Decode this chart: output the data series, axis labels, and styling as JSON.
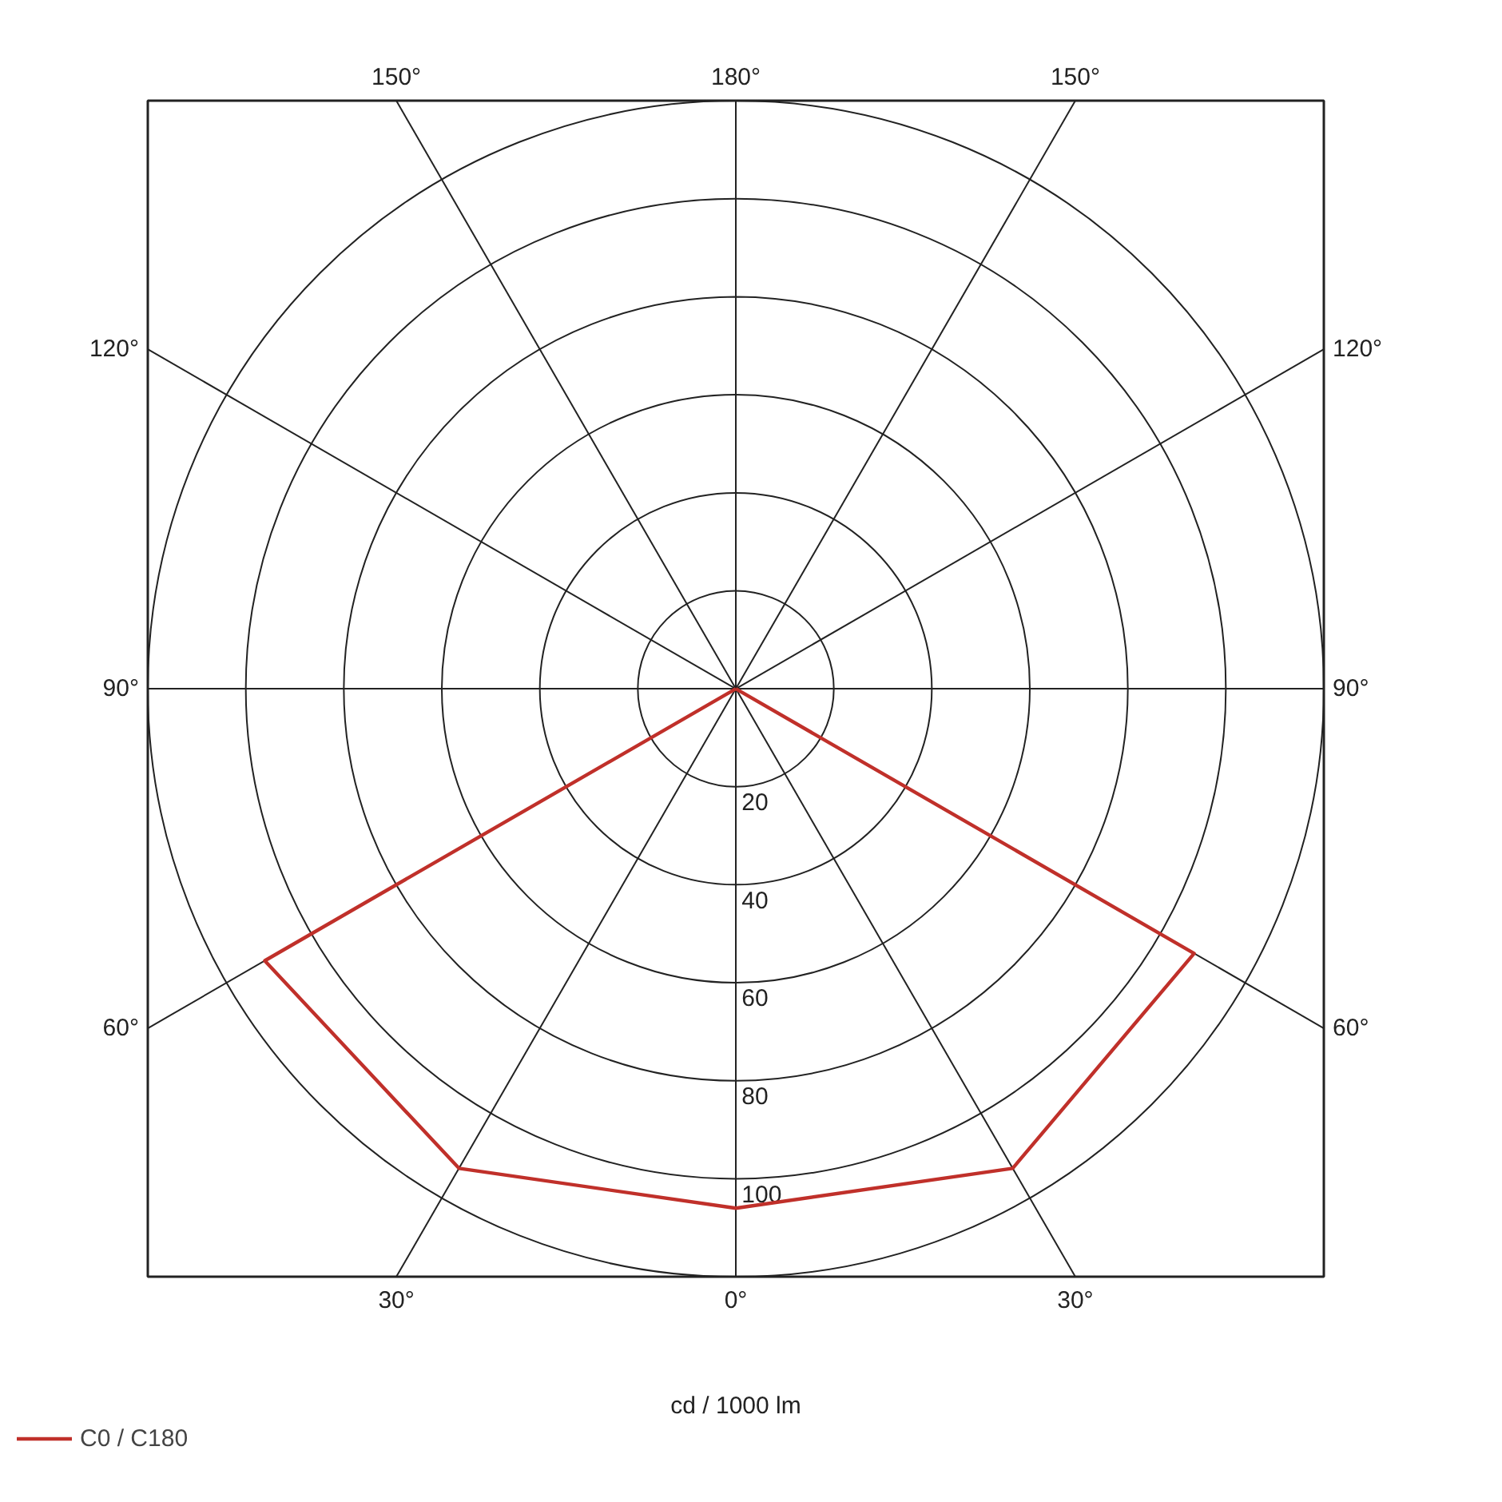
{
  "chart_data": {
    "type": "radar",
    "xlabel": "cd / 1000 lm",
    "legend": "bottom left",
    "grid": true,
    "line_style": "solid",
    "marker": "none",
    "categories": [
      "180°",
      "150°",
      "120°",
      "90°",
      "60°",
      "30°",
      "0°",
      "30°",
      "60°",
      "90°",
      "120°",
      "150°"
    ],
    "ylim": [
      0,
      120
    ],
    "yticks": [
      20,
      40,
      60,
      80,
      100
    ],
    "series": [
      {
        "name": "C0 / C180",
        "color": "#c0302a",
        "values": [
          0,
          0,
          0,
          0,
          108,
          113,
          106,
          113,
          111,
          0,
          0,
          0
        ]
      }
    ]
  }
}
